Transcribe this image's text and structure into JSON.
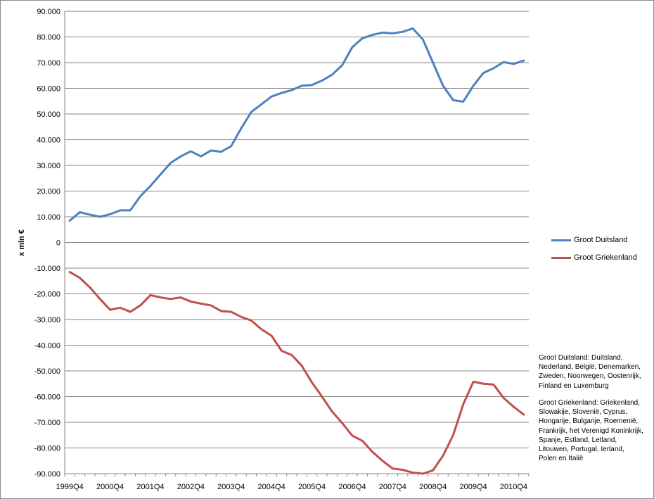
{
  "chart_data": {
    "type": "line",
    "title": "",
    "xlabel": "",
    "ylabel": "x mln €",
    "ylim": [
      -90000,
      90000
    ],
    "ytick_step": 10000,
    "ytick_labels": [
      "90.000",
      "80.000",
      "70.000",
      "60.000",
      "50.000",
      "40.000",
      "30.000",
      "20.000",
      "10.000",
      "0",
      "-10.000",
      "-20.000",
      "-30.000",
      "-40.000",
      "-50.000",
      "-60.000",
      "-70.000",
      "-80.000",
      "-90.000"
    ],
    "x_tick_labels": [
      "1999Q4",
      "2000Q4",
      "2001Q4",
      "2002Q4",
      "2003Q4",
      "2004Q4",
      "2005Q4",
      "2006Q4",
      "2007Q4",
      "2008Q4",
      "2009Q4",
      "2010Q4"
    ],
    "x_tick_label_step": 4,
    "grid": true,
    "legend_position": "right",
    "colors": {
      "Groot Duitsland": "#4f81bd",
      "Groot Griekenland": "#c0504d"
    },
    "series": [
      {
        "name": "Groot Duitsland",
        "values": [
          8500,
          11800,
          10800,
          10000,
          11000,
          12500,
          12500,
          18000,
          22000,
          26500,
          31000,
          33500,
          35500,
          33500,
          35800,
          35300,
          37500,
          44500,
          50800,
          53800,
          56800,
          58200,
          59300,
          61000,
          61300,
          63000,
          65300,
          69000,
          76000,
          79500,
          80800,
          81700,
          81400,
          82000,
          83300,
          79000,
          70000,
          61000,
          55400,
          54800,
          61000,
          66000,
          67800,
          70200,
          69500,
          70800
        ]
      },
      {
        "name": "Groot Griekenland",
        "values": [
          -11500,
          -13800,
          -17500,
          -22000,
          -26200,
          -25400,
          -27000,
          -24500,
          -20500,
          -21400,
          -22000,
          -21400,
          -23000,
          -23800,
          -24500,
          -26700,
          -27000,
          -29000,
          -30400,
          -33800,
          -36300,
          -42200,
          -43800,
          -48000,
          -54500,
          -60000,
          -65800,
          -70300,
          -75200,
          -77200,
          -81500,
          -85000,
          -88000,
          -88500,
          -89600,
          -90000,
          -88700,
          -83000,
          -75000,
          -63000,
          -54200,
          -55000,
          -55300,
          -60500,
          -64000,
          -67000
        ]
      }
    ]
  },
  "notes": {
    "groot_duitsland": "Groot Duitsland: Duitsland, Nederland, België, Denemarken, Zweden, Noorwegen, Oostenrijk, Finland en Luxemburg",
    "groot_griekenland": "Groot Griekenland: Griekenland, Slowakije, Slovenië, Cyprus, Hongarije, Bulgarije, Roemenië, Frankrijk, het Verenigd Koninkrijk, Spanje, Estland, Letland, Litouwen, Portugal, Ierland, Polen en Italië"
  }
}
